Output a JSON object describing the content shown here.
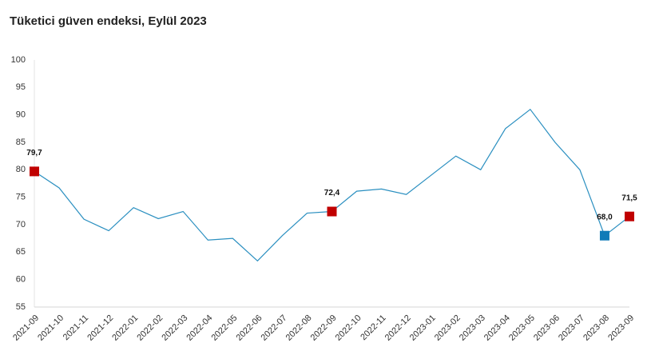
{
  "chart_data": {
    "type": "line",
    "title": "Tüketici güven endeksi, Eylül 2023",
    "categories": [
      "2021-09",
      "2021-10",
      "2021-11",
      "2021-12",
      "2022-01",
      "2022-02",
      "2022-03",
      "2022-04",
      "2022-05",
      "2022-06",
      "2022-07",
      "2022-08",
      "2022-09",
      "2022-10",
      "2022-11",
      "2022-12",
      "2023-01",
      "2023-02",
      "2023-03",
      "2023-04",
      "2023-05",
      "2023-06",
      "2023-07",
      "2023-08",
      "2023-09"
    ],
    "values": [
      79.7,
      76.7,
      71.0,
      68.9,
      73.1,
      71.1,
      72.4,
      67.2,
      67.5,
      63.4,
      68.0,
      72.1,
      72.4,
      76.1,
      76.5,
      75.5,
      79.0,
      82.5,
      80.0,
      87.5,
      91.0,
      85.0,
      80.0,
      68.0,
      71.5
    ],
    "value_labels": [
      "79,7",
      null,
      null,
      null,
      null,
      null,
      null,
      null,
      null,
      null,
      null,
      null,
      "72,4",
      null,
      null,
      null,
      null,
      null,
      null,
      null,
      null,
      null,
      null,
      "68,0",
      "71,5"
    ],
    "marker_colors": [
      "#c00000",
      null,
      null,
      null,
      null,
      null,
      null,
      null,
      null,
      null,
      null,
      null,
      "#c00000",
      null,
      null,
      null,
      null,
      null,
      null,
      null,
      null,
      null,
      null,
      "#0f7bb8",
      "#c00000"
    ],
    "color": "#2a8fc0",
    "ylim": [
      55,
      100
    ],
    "yticks": [
      55,
      60,
      65,
      70,
      75,
      80,
      85,
      90,
      95,
      100
    ],
    "grid": false
  }
}
